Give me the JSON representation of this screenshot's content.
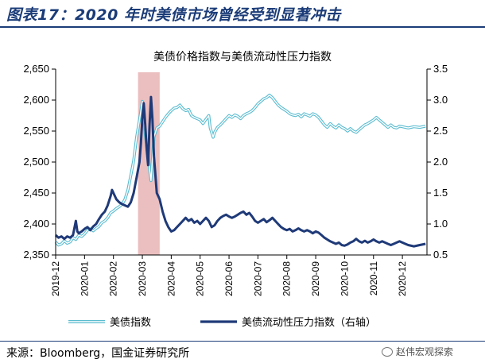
{
  "header": {
    "title": "图表17：2020 年时美债市场曾经受到显著冲击"
  },
  "footer": {
    "source": "来源：Bloomberg，国金证券研究所",
    "watermark": "赵伟宏观探索"
  },
  "chart_data": {
    "type": "line",
    "title": "美债价格指数与美债流动性压力指数",
    "categories": [
      "2019-12",
      "2020-01",
      "2020-02",
      "2020-03",
      "2020-04",
      "2020-05",
      "2020-06",
      "2020-07",
      "2020-08",
      "2020-09",
      "2020-10",
      "2020-11",
      "2020-12"
    ],
    "ylim": [
      2350,
      2650
    ],
    "y_ticks": [
      "2,350",
      "2,400",
      "2,450",
      "2,500",
      "2,550",
      "2,600",
      "2,650"
    ],
    "y2lim": [
      0.5,
      3.5
    ],
    "y2_ticks": [
      "0.5",
      "1.0",
      "1.5",
      "2.0",
      "2.5",
      "3.0",
      "3.5"
    ],
    "highlight": {
      "from": 2.85,
      "to": 3.6,
      "color": "#e8b4b4"
    },
    "legend": [
      "美债指数",
      "美债流动性压力指数（右轴）"
    ],
    "series": [
      {
        "name": "美债指数",
        "axis": "left",
        "color": "#5bbcd0",
        "points": [
          [
            0,
            2371
          ],
          [
            0.1,
            2366
          ],
          [
            0.2,
            2368
          ],
          [
            0.3,
            2373
          ],
          [
            0.4,
            2369
          ],
          [
            0.5,
            2371
          ],
          [
            0.6,
            2378
          ],
          [
            0.7,
            2375
          ],
          [
            0.8,
            2382
          ],
          [
            0.9,
            2380
          ],
          [
            1.0,
            2384
          ],
          [
            1.1,
            2390
          ],
          [
            1.2,
            2392
          ],
          [
            1.3,
            2389
          ],
          [
            1.4,
            2393
          ],
          [
            1.5,
            2396
          ],
          [
            1.6,
            2402
          ],
          [
            1.7,
            2405
          ],
          [
            1.8,
            2410
          ],
          [
            1.9,
            2418
          ],
          [
            2.0,
            2421
          ],
          [
            2.1,
            2425
          ],
          [
            2.2,
            2428
          ],
          [
            2.3,
            2432
          ],
          [
            2.4,
            2440
          ],
          [
            2.5,
            2455
          ],
          [
            2.6,
            2478
          ],
          [
            2.7,
            2502
          ],
          [
            2.8,
            2540
          ],
          [
            2.9,
            2568
          ],
          [
            3.0,
            2598
          ],
          [
            3.05,
            2575
          ],
          [
            3.1,
            2545
          ],
          [
            3.15,
            2525
          ],
          [
            3.2,
            2510
          ],
          [
            3.25,
            2488
          ],
          [
            3.3,
            2470
          ],
          [
            3.35,
            2505
          ],
          [
            3.4,
            2540
          ],
          [
            3.5,
            2555
          ],
          [
            3.6,
            2558
          ],
          [
            3.7,
            2565
          ],
          [
            3.8,
            2572
          ],
          [
            3.9,
            2578
          ],
          [
            4.0,
            2583
          ],
          [
            4.1,
            2587
          ],
          [
            4.2,
            2588
          ],
          [
            4.3,
            2592
          ],
          [
            4.4,
            2586
          ],
          [
            4.5,
            2583
          ],
          [
            4.6,
            2585
          ],
          [
            4.7,
            2575
          ],
          [
            4.8,
            2572
          ],
          [
            4.9,
            2570
          ],
          [
            5.0,
            2568
          ],
          [
            5.1,
            2562
          ],
          [
            5.2,
            2569
          ],
          [
            5.3,
            2575
          ],
          [
            5.35,
            2555
          ],
          [
            5.45,
            2540
          ],
          [
            5.5,
            2548
          ],
          [
            5.6,
            2556
          ],
          [
            5.7,
            2560
          ],
          [
            5.8,
            2565
          ],
          [
            5.9,
            2570
          ],
          [
            6.0,
            2575
          ],
          [
            6.1,
            2572
          ],
          [
            6.2,
            2576
          ],
          [
            6.3,
            2574
          ],
          [
            6.4,
            2570
          ],
          [
            6.5,
            2575
          ],
          [
            6.6,
            2578
          ],
          [
            6.7,
            2580
          ],
          [
            6.8,
            2583
          ],
          [
            6.9,
            2588
          ],
          [
            7.0,
            2594
          ],
          [
            7.1,
            2598
          ],
          [
            7.2,
            2602
          ],
          [
            7.3,
            2604
          ],
          [
            7.4,
            2608
          ],
          [
            7.5,
            2604
          ],
          [
            7.6,
            2598
          ],
          [
            7.7,
            2592
          ],
          [
            7.8,
            2588
          ],
          [
            7.9,
            2585
          ],
          [
            8.0,
            2582
          ],
          [
            8.1,
            2578
          ],
          [
            8.2,
            2576
          ],
          [
            8.3,
            2575
          ],
          [
            8.4,
            2577
          ],
          [
            8.5,
            2573
          ],
          [
            8.6,
            2578
          ],
          [
            8.7,
            2576
          ],
          [
            8.8,
            2574
          ],
          [
            8.9,
            2578
          ],
          [
            9.0,
            2576
          ],
          [
            9.1,
            2572
          ],
          [
            9.2,
            2566
          ],
          [
            9.3,
            2560
          ],
          [
            9.4,
            2556
          ],
          [
            9.5,
            2562
          ],
          [
            9.6,
            2558
          ],
          [
            9.7,
            2555
          ],
          [
            9.8,
            2560
          ],
          [
            9.9,
            2556
          ],
          [
            10.0,
            2554
          ],
          [
            10.1,
            2550
          ],
          [
            10.2,
            2554
          ],
          [
            10.3,
            2550
          ],
          [
            10.4,
            2548
          ],
          [
            10.5,
            2552
          ],
          [
            10.6,
            2556
          ],
          [
            10.7,
            2560
          ],
          [
            10.8,
            2562
          ],
          [
            10.9,
            2565
          ],
          [
            11.0,
            2568
          ],
          [
            11.1,
            2572
          ],
          [
            11.2,
            2568
          ],
          [
            11.3,
            2564
          ],
          [
            11.4,
            2560
          ],
          [
            11.5,
            2556
          ],
          [
            11.6,
            2560
          ],
          [
            11.7,
            2556
          ],
          [
            11.8,
            2555
          ],
          [
            11.9,
            2558
          ],
          [
            12.0,
            2557
          ],
          [
            12.2,
            2555
          ],
          [
            12.4,
            2557
          ],
          [
            12.6,
            2556
          ],
          [
            12.8,
            2558
          ]
        ]
      },
      {
        "name": "美债流动性压力指数（右轴）",
        "axis": "right",
        "color": "#1f3a78",
        "points": [
          [
            0,
            0.82
          ],
          [
            0.1,
            0.78
          ],
          [
            0.2,
            0.8
          ],
          [
            0.3,
            0.76
          ],
          [
            0.4,
            0.8
          ],
          [
            0.5,
            0.78
          ],
          [
            0.6,
            0.82
          ],
          [
            0.7,
            1.05
          ],
          [
            0.75,
            0.88
          ],
          [
            0.8,
            0.85
          ],
          [
            0.9,
            0.88
          ],
          [
            1.0,
            0.92
          ],
          [
            1.1,
            0.95
          ],
          [
            1.2,
            0.9
          ],
          [
            1.3,
            0.96
          ],
          [
            1.4,
            1.0
          ],
          [
            1.5,
            1.08
          ],
          [
            1.6,
            1.15
          ],
          [
            1.7,
            1.2
          ],
          [
            1.8,
            1.3
          ],
          [
            1.9,
            1.45
          ],
          [
            1.95,
            1.55
          ],
          [
            2.0,
            1.5
          ],
          [
            2.1,
            1.4
          ],
          [
            2.2,
            1.35
          ],
          [
            2.3,
            1.32
          ],
          [
            2.4,
            1.3
          ],
          [
            2.5,
            1.28
          ],
          [
            2.6,
            1.35
          ],
          [
            2.7,
            1.5
          ],
          [
            2.8,
            1.75
          ],
          [
            2.9,
            2.0
          ],
          [
            2.95,
            2.3
          ],
          [
            3.0,
            2.7
          ],
          [
            3.05,
            2.95
          ],
          [
            3.1,
            2.6
          ],
          [
            3.15,
            2.2
          ],
          [
            3.2,
            1.95
          ],
          [
            3.25,
            2.6
          ],
          [
            3.3,
            3.05
          ],
          [
            3.35,
            2.7
          ],
          [
            3.4,
            2.1
          ],
          [
            3.5,
            1.5
          ],
          [
            3.6,
            1.4
          ],
          [
            3.7,
            1.2
          ],
          [
            3.8,
            1.05
          ],
          [
            3.9,
            0.95
          ],
          [
            4.0,
            0.88
          ],
          [
            4.1,
            0.9
          ],
          [
            4.2,
            0.95
          ],
          [
            4.3,
            1.0
          ],
          [
            4.4,
            1.05
          ],
          [
            4.5,
            1.1
          ],
          [
            4.6,
            1.05
          ],
          [
            4.7,
            1.08
          ],
          [
            4.8,
            1.02
          ],
          [
            4.9,
            1.05
          ],
          [
            5.0,
            1.0
          ],
          [
            5.1,
            1.05
          ],
          [
            5.2,
            1.1
          ],
          [
            5.3,
            1.05
          ],
          [
            5.4,
            0.95
          ],
          [
            5.5,
            0.98
          ],
          [
            5.6,
            1.05
          ],
          [
            5.7,
            1.1
          ],
          [
            5.8,
            1.13
          ],
          [
            5.9,
            1.15
          ],
          [
            6.0,
            1.12
          ],
          [
            6.1,
            1.1
          ],
          [
            6.2,
            1.12
          ],
          [
            6.3,
            1.15
          ],
          [
            6.4,
            1.18
          ],
          [
            6.5,
            1.2
          ],
          [
            6.6,
            1.15
          ],
          [
            6.7,
            1.18
          ],
          [
            6.8,
            1.12
          ],
          [
            6.9,
            1.05
          ],
          [
            7.0,
            1.02
          ],
          [
            7.1,
            1.05
          ],
          [
            7.2,
            1.08
          ],
          [
            7.3,
            1.03
          ],
          [
            7.4,
            1.06
          ],
          [
            7.5,
            1.1
          ],
          [
            7.6,
            1.05
          ],
          [
            7.7,
            1.0
          ],
          [
            7.8,
            0.95
          ],
          [
            7.9,
            0.92
          ],
          [
            8.0,
            0.9
          ],
          [
            8.1,
            0.92
          ],
          [
            8.2,
            0.88
          ],
          [
            8.3,
            0.9
          ],
          [
            8.4,
            0.93
          ],
          [
            8.5,
            0.9
          ],
          [
            8.6,
            0.88
          ],
          [
            8.7,
            0.9
          ],
          [
            8.8,
            0.88
          ],
          [
            8.9,
            0.85
          ],
          [
            9.0,
            0.88
          ],
          [
            9.1,
            0.86
          ],
          [
            9.2,
            0.82
          ],
          [
            9.3,
            0.78
          ],
          [
            9.4,
            0.75
          ],
          [
            9.5,
            0.72
          ],
          [
            9.6,
            0.7
          ],
          [
            9.7,
            0.68
          ],
          [
            9.8,
            0.7
          ],
          [
            9.9,
            0.66
          ],
          [
            10.0,
            0.65
          ],
          [
            10.1,
            0.67
          ],
          [
            10.2,
            0.7
          ],
          [
            10.3,
            0.72
          ],
          [
            10.4,
            0.76
          ],
          [
            10.5,
            0.72
          ],
          [
            10.6,
            0.7
          ],
          [
            10.7,
            0.73
          ],
          [
            10.8,
            0.7
          ],
          [
            10.9,
            0.72
          ],
          [
            11.0,
            0.75
          ],
          [
            11.1,
            0.72
          ],
          [
            11.2,
            0.7
          ],
          [
            11.3,
            0.72
          ],
          [
            11.4,
            0.7
          ],
          [
            11.5,
            0.68
          ],
          [
            11.6,
            0.66
          ],
          [
            11.7,
            0.68
          ],
          [
            11.8,
            0.7
          ],
          [
            11.9,
            0.72
          ],
          [
            12.0,
            0.7
          ],
          [
            12.2,
            0.66
          ],
          [
            12.4,
            0.64
          ],
          [
            12.6,
            0.66
          ],
          [
            12.8,
            0.68
          ]
        ]
      }
    ]
  }
}
